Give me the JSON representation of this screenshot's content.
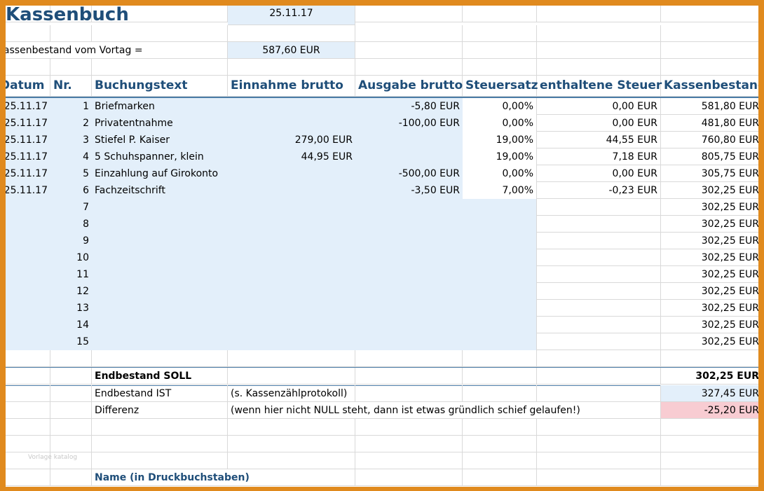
{
  "title": "Kassenbuch",
  "date": "25.11.17",
  "opening_label": "Kassenbestand vom Vortag =",
  "opening_value": "587,60 EUR",
  "headers": {
    "datum": "Datum",
    "nr": "Nr.",
    "text": "Buchungstext",
    "einnahme": "Einnahme brutto",
    "ausgabe": "Ausgabe brutto",
    "satz": "Steuersatz",
    "steuer": "enthaltene Steuer",
    "bestand": "Kassenbestand"
  },
  "rows": [
    {
      "datum": "25.11.17",
      "nr": "1",
      "text": "Briefmarken",
      "einnahme": "",
      "ausgabe": "-5,80 EUR",
      "satz": "0,00%",
      "steuer": "0,00 EUR",
      "bestand": "581,80 EUR"
    },
    {
      "datum": "25.11.17",
      "nr": "2",
      "text": "Privatentnahme",
      "einnahme": "",
      "ausgabe": "-100,00 EUR",
      "satz": "0,00%",
      "steuer": "0,00 EUR",
      "bestand": "481,80 EUR"
    },
    {
      "datum": "25.11.17",
      "nr": "3",
      "text": "Stiefel P. Kaiser",
      "einnahme": "279,00 EUR",
      "ausgabe": "",
      "satz": "19,00%",
      "steuer": "44,55 EUR",
      "bestand": "760,80 EUR"
    },
    {
      "datum": "25.11.17",
      "nr": "4",
      "text": "5 Schuhspanner, klein",
      "einnahme": "44,95 EUR",
      "ausgabe": "",
      "satz": "19,00%",
      "steuer": "7,18 EUR",
      "bestand": "805,75 EUR"
    },
    {
      "datum": "25.11.17",
      "nr": "5",
      "text": "Einzahlung auf Girokonto",
      "einnahme": "",
      "ausgabe": "-500,00 EUR",
      "satz": "0,00%",
      "steuer": "0,00 EUR",
      "bestand": "305,75 EUR"
    },
    {
      "datum": "25.11.17",
      "nr": "6",
      "text": "Fachzeitschrift",
      "einnahme": "",
      "ausgabe": "-3,50 EUR",
      "satz": "7,00%",
      "steuer": "-0,23 EUR",
      "bestand": "302,25 EUR"
    },
    {
      "datum": "",
      "nr": "7",
      "text": "",
      "einnahme": "",
      "ausgabe": "",
      "satz": "",
      "steuer": "",
      "bestand": "302,25 EUR"
    },
    {
      "datum": "",
      "nr": "8",
      "text": "",
      "einnahme": "",
      "ausgabe": "",
      "satz": "",
      "steuer": "",
      "bestand": "302,25 EUR"
    },
    {
      "datum": "",
      "nr": "9",
      "text": "",
      "einnahme": "",
      "ausgabe": "",
      "satz": "",
      "steuer": "",
      "bestand": "302,25 EUR"
    },
    {
      "datum": "",
      "nr": "10",
      "text": "",
      "einnahme": "",
      "ausgabe": "",
      "satz": "",
      "steuer": "",
      "bestand": "302,25 EUR"
    },
    {
      "datum": "",
      "nr": "11",
      "text": "",
      "einnahme": "",
      "ausgabe": "",
      "satz": "",
      "steuer": "",
      "bestand": "302,25 EUR"
    },
    {
      "datum": "",
      "nr": "12",
      "text": "",
      "einnahme": "",
      "ausgabe": "",
      "satz": "",
      "steuer": "",
      "bestand": "302,25 EUR"
    },
    {
      "datum": "",
      "nr": "13",
      "text": "",
      "einnahme": "",
      "ausgabe": "",
      "satz": "",
      "steuer": "",
      "bestand": "302,25 EUR"
    },
    {
      "datum": "",
      "nr": "14",
      "text": "",
      "einnahme": "",
      "ausgabe": "",
      "satz": "",
      "steuer": "",
      "bestand": "302,25 EUR"
    },
    {
      "datum": "",
      "nr": "15",
      "text": "",
      "einnahme": "",
      "ausgabe": "",
      "satz": "",
      "steuer": "",
      "bestand": "302,25 EUR"
    }
  ],
  "soll_label": "Endbestand SOLL",
  "soll_value": "302,25 EUR",
  "ist_label": "Endbestand IST",
  "ist_note": "(s. Kassenzählprotokoll)",
  "ist_value": "327,45 EUR",
  "diff_label": "Differenz",
  "diff_note": "(wenn hier nicht NULL steht, dann ist etwas gründlich schief gelaufen!)",
  "diff_value": "-25,20 EUR",
  "watermark": "Vorlage katalog",
  "name_label": "Name (in Druckbuchstaben)",
  "colors": {
    "frame": "#e08a1e",
    "cell_blue": "#e3effa",
    "cell_pink": "#f8ccd2",
    "header_text": "#1f4e79"
  }
}
